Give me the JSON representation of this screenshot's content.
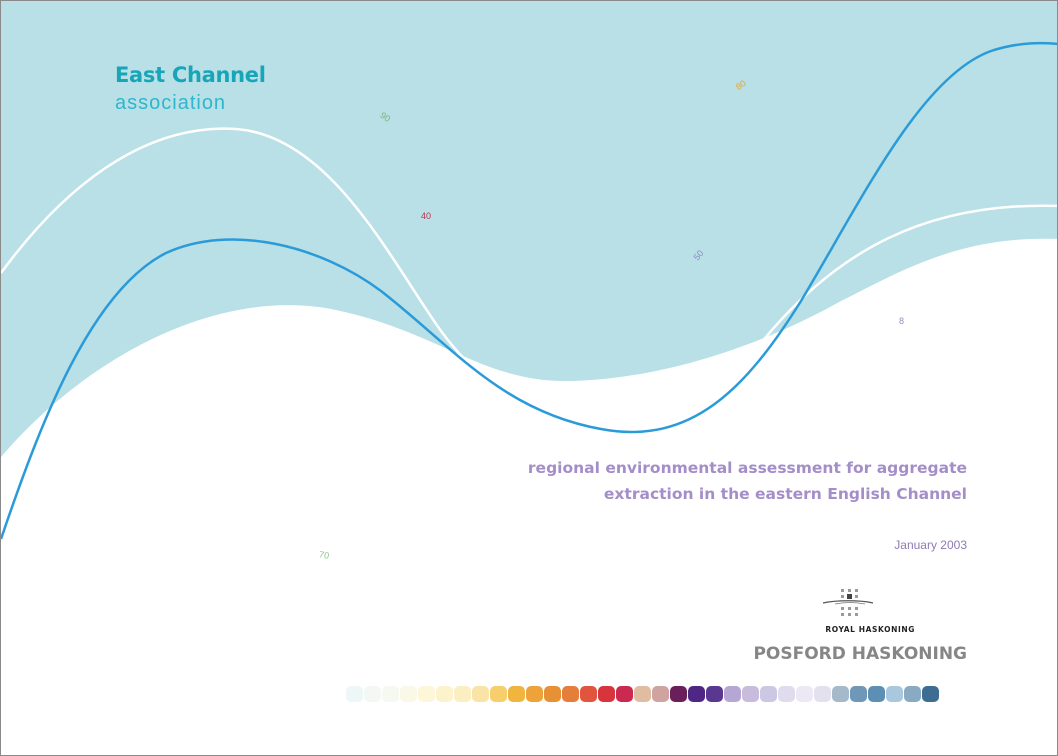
{
  "logo": {
    "line1": "East Channel",
    "line2": "association"
  },
  "depth_labels": [
    {
      "text": "90",
      "color": "#7ab87a"
    },
    {
      "text": "40",
      "color": "#b8344c"
    },
    {
      "text": "80",
      "color": "#d9a84a"
    },
    {
      "text": "50",
      "color": "#8d8dc2"
    },
    {
      "text": "8",
      "color": "#8e8ec0"
    },
    {
      "text": "70",
      "color": "#8ec08e"
    }
  ],
  "report": {
    "title_line1": "regional environmental assessment for aggregate",
    "title_line2": "extraction in the eastern English Channel",
    "date": "January 2003"
  },
  "publisher": {
    "parent": "ROYAL HASKONING",
    "name": "POSFORD HASKONING"
  },
  "colors": {
    "sea": "#b8e0e6",
    "contour_blue": "#2a9bd8",
    "contour_white": "#ffffff",
    "title_purple": "#a48ec8",
    "swatches": [
      "#eef7f7",
      "#f3f8f4",
      "#f6f9f0",
      "#faf8e6",
      "#fdf6d9",
      "#fcf2cc",
      "#fbeec0",
      "#f9e3a6",
      "#f6ce6c",
      "#f0b53f",
      "#eea33a",
      "#e89034",
      "#e57d3b",
      "#e1543d",
      "#d8343c",
      "#cc2950",
      "#e0bca0",
      "#cfa3a0",
      "#6b1f5a",
      "#4e2683",
      "#5a3790",
      "#b6a6d4",
      "#c7bcdc",
      "#ccc7e3",
      "#e0dcee",
      "#ece8f4",
      "#e3e1ee",
      "#a4b9c9",
      "#6f98b8",
      "#5d8fb4",
      "#a9c7dd",
      "#88aac3",
      "#3d6e92"
    ]
  }
}
